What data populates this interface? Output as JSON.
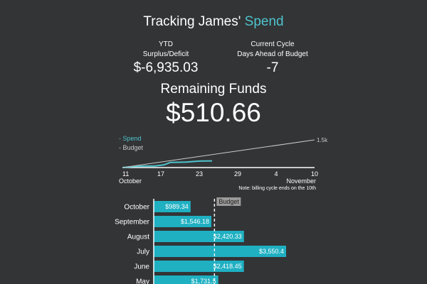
{
  "header": {
    "title_prefix": "Tracking James'",
    "title_accent": "Spend"
  },
  "stats": {
    "ytd": {
      "label_line1": "YTD",
      "label_line2": "Surplus/Deficit",
      "value": "$-6,935.03"
    },
    "days": {
      "label_line1": "Current Cycle",
      "label_line2": "Days Ahead of Budget",
      "value": "-7"
    }
  },
  "remaining": {
    "label": "Remaining Funds",
    "value": "$510.66"
  },
  "colors": {
    "accent": "#4ec3cd",
    "budget_line": "#cccccc",
    "background": "#333436",
    "bar": "#1fb0c2"
  },
  "chart_data": [
    {
      "type": "line",
      "legend": [
        "- Spend",
        "- Budget"
      ],
      "legend_placement": "top-left",
      "x_tick_labels": [
        "11",
        "17",
        "23",
        "29",
        "4",
        "10"
      ],
      "x_month_labels": [
        "October",
        "November"
      ],
      "y_tick_label": "1.5k",
      "note": "Note: billing cycle ends on the 10th",
      "day_range": [
        0,
        30
      ],
      "ylim": [
        0,
        1500
      ],
      "series": [
        {
          "name": "Spend",
          "color": "#4ec3cd",
          "points": [
            [
              0,
              0
            ],
            [
              2,
              60
            ],
            [
              3.5,
              80
            ],
            [
              5,
              80
            ],
            [
              6.5,
              150
            ],
            [
              7.5,
              280
            ],
            [
              9,
              290
            ],
            [
              10,
              300
            ],
            [
              12,
              350
            ],
            [
              14,
              360
            ]
          ]
        },
        {
          "name": "Budget",
          "color": "#cccccc",
          "points": [
            [
              0,
              0
            ],
            [
              30,
              1500
            ]
          ]
        }
      ]
    },
    {
      "type": "bar",
      "orientation": "horizontal",
      "categories": [
        "October",
        "September",
        "August",
        "July",
        "June",
        "May"
      ],
      "values": [
        989.34,
        1546.18,
        2420.33,
        3550.4,
        2418.45,
        1731.5
      ],
      "value_labels": [
        "$989.34",
        "$1,546.18",
        "$2,420.33",
        "$3,550.4",
        "$2,418.45",
        "$1,731.5"
      ],
      "budget_label": "Budget",
      "budget_value": 1630,
      "xlim": [
        0,
        3550.4
      ]
    }
  ]
}
